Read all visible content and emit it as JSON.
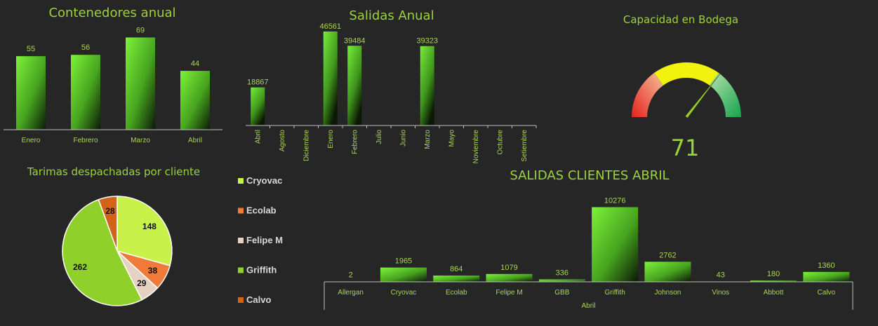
{
  "chart_data": [
    {
      "id": "contenedores",
      "type": "bar",
      "title": "Contenedores anual",
      "categories": [
        "Enero",
        "Febrero",
        "Marzo",
        "Abril"
      ],
      "values": [
        55,
        56,
        69,
        44
      ],
      "ylim": [
        0,
        75
      ],
      "grid": false
    },
    {
      "id": "salidas",
      "type": "bar",
      "title": "Salidas Anual",
      "categories": [
        "Abril",
        "Agosto",
        "Diciembre",
        "Enero",
        "Febrero",
        "Julio",
        "Junio",
        "Marzo",
        "Mayo",
        "Noviembre",
        "Octubre",
        "Setiembre"
      ],
      "values": [
        18867,
        null,
        null,
        46561,
        39484,
        null,
        null,
        39323,
        null,
        null,
        null,
        null
      ],
      "ylim": [
        0,
        50000
      ],
      "grid": false
    },
    {
      "id": "capacidad",
      "type": "gauge",
      "title": "Capacidad en Bodega",
      "value": 71,
      "range": [
        0,
        100
      ],
      "bands": [
        {
          "from": 0,
          "to": 30,
          "color": "#e8211f"
        },
        {
          "from": 30,
          "to": 70,
          "color": "#f2f20f"
        },
        {
          "from": 70,
          "to": 100,
          "color": "#13a54a"
        }
      ]
    },
    {
      "id": "tarimas",
      "type": "pie",
      "title": "Tarimas despachadas por cliente",
      "slices": [
        {
          "label": "Cryovac",
          "value": 148,
          "color": "#c8f24a"
        },
        {
          "label": "Ecolab",
          "value": 38,
          "color": "#f07a3a"
        },
        {
          "label": "Felipe M",
          "value": 29,
          "color": "#e6d2c2"
        },
        {
          "label": "Griffith",
          "value": 262,
          "color": "#8fd12a"
        },
        {
          "label": "Calvo",
          "value": 28,
          "color": "#d2641a"
        }
      ],
      "legend_position": "right"
    },
    {
      "id": "clientes",
      "type": "bar",
      "title": "SALIDAS CLIENTES ABRIL",
      "categories": [
        "Allergan",
        "Cryovac",
        "Ecolab",
        "Felipe M",
        "GBB",
        "Griffith",
        "Johnson",
        "Vinos",
        "Abbott",
        "Calvo"
      ],
      "values": [
        2,
        1965,
        864,
        1079,
        336,
        10276,
        2762,
        43,
        180,
        1360
      ],
      "group_label": "Abril",
      "ylim": [
        0,
        11000
      ],
      "grid": false
    }
  ]
}
